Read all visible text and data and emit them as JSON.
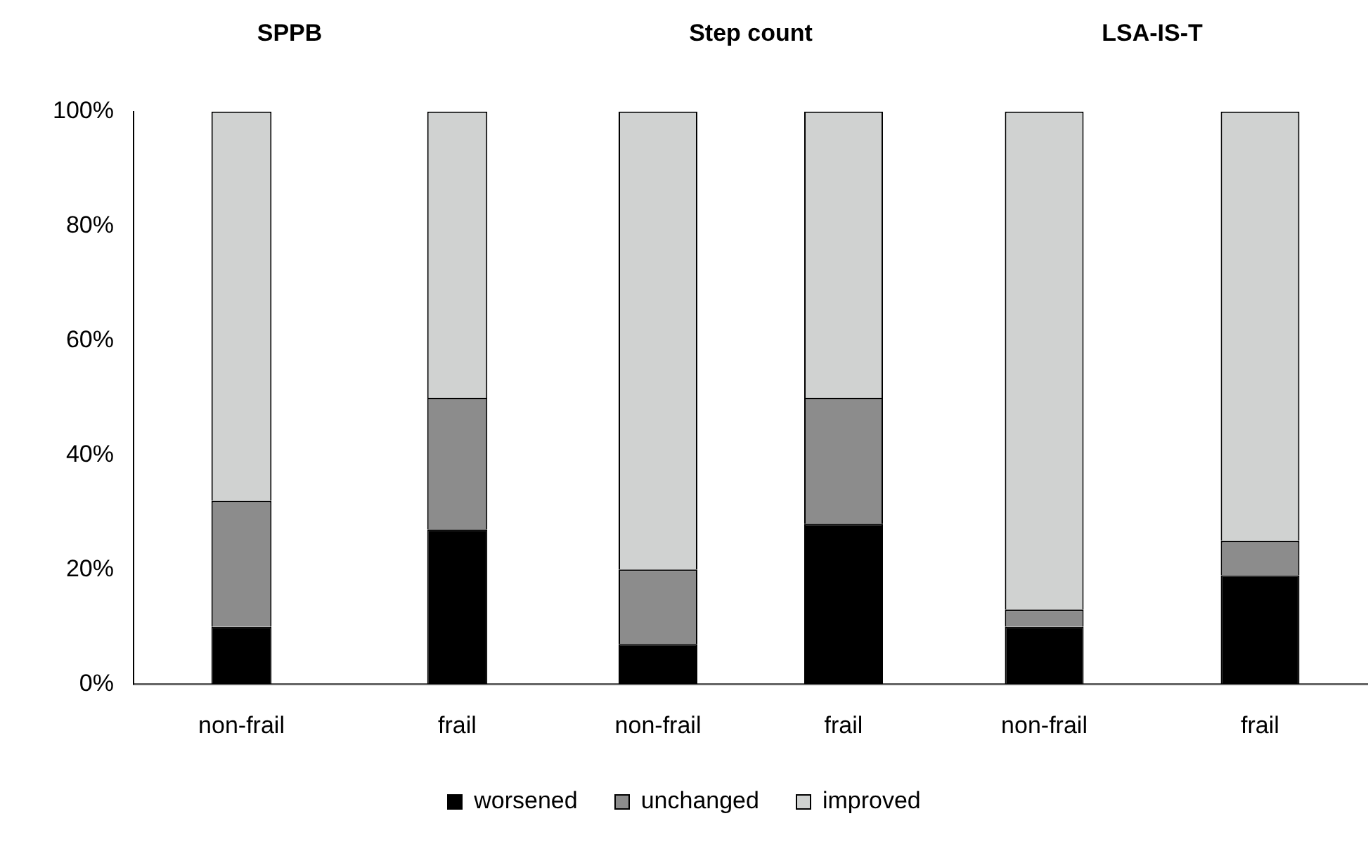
{
  "chart_data": [
    {
      "type": "bar",
      "title": "SPPB",
      "stacked": true,
      "categories": [
        "non-frail",
        "frail"
      ],
      "ylim": [
        0,
        100
      ],
      "yticks": [
        {
          "value": 0,
          "label": "0%"
        },
        {
          "value": 20,
          "label": "20%"
        },
        {
          "value": 40,
          "label": "40%"
        },
        {
          "value": 60,
          "label": "60%"
        },
        {
          "value": 80,
          "label": "80%"
        },
        {
          "value": 100,
          "label": "100%"
        }
      ],
      "grid": false,
      "legend": false,
      "series": [
        {
          "color": "#000000",
          "values": [
            10,
            27
          ]
        },
        {
          "color": "#8c8c8c",
          "values": [
            22,
            23
          ]
        },
        {
          "color": "#d0d2d1",
          "values": [
            68,
            50
          ]
        }
      ]
    },
    {
      "type": "bar",
      "title": "Step count",
      "stacked": true,
      "categories": [
        "non-frail",
        "frail"
      ],
      "ylim": [
        0,
        100
      ],
      "tick_labels": "x",
      "grid": false,
      "legend": "bottom",
      "series": [
        {
          "name": "worsened",
          "color": "#000000",
          "values": [
            7,
            28
          ]
        },
        {
          "name": "unchanged",
          "color": "#8c8c8c",
          "values": [
            13,
            22
          ]
        },
        {
          "name": "improved",
          "color": "#d0d2d1",
          "values": [
            80,
            50
          ]
        }
      ]
    },
    {
      "type": "bar",
      "title": "LSA-IS-T",
      "stacked": true,
      "categories": [
        "non-frail",
        "frail"
      ],
      "ylim": [
        0,
        100
      ],
      "tick_labels": "x",
      "grid": false,
      "legend": false,
      "series": [
        {
          "color": "#000000",
          "values": [
            10,
            19
          ]
        },
        {
          "color": "#8c8c8c",
          "values": [
            3,
            6
          ]
        },
        {
          "color": "#d0d2d1",
          "values": [
            87,
            75
          ]
        }
      ]
    }
  ]
}
